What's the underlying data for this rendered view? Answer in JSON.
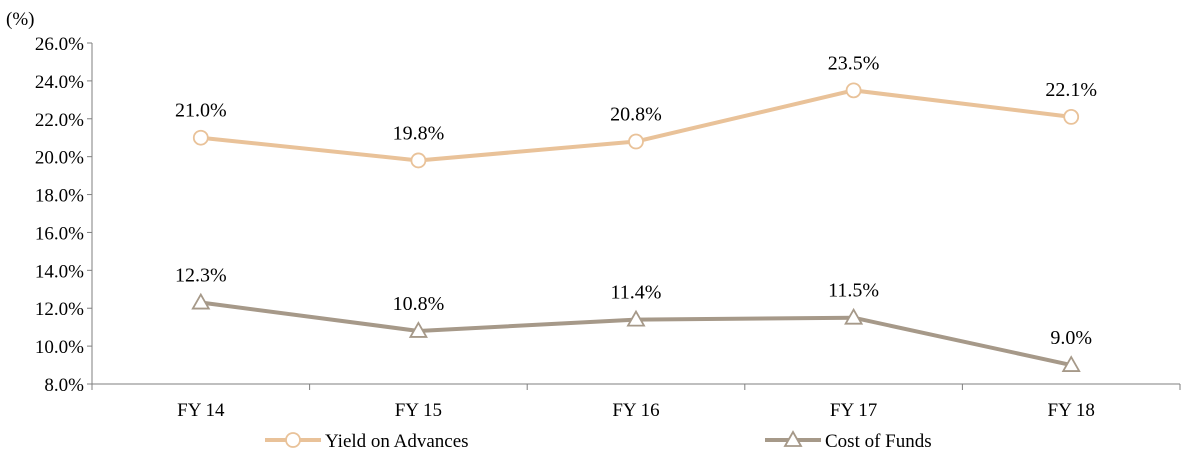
{
  "chart_data": {
    "type": "line",
    "ylabel": "(%)",
    "categories": [
      "FY 14",
      "FY 15",
      "FY 16",
      "FY 17",
      "FY 18"
    ],
    "ylim": [
      8.0,
      26.0
    ],
    "yticks": [
      "8.0%",
      "10.0%",
      "12.0%",
      "14.0%",
      "16.0%",
      "18.0%",
      "20.0%",
      "22.0%",
      "24.0%",
      "26.0%"
    ],
    "legend_position": "bottom",
    "series": [
      {
        "name": "Yield on Advances",
        "values": [
          21.0,
          19.8,
          20.8,
          23.5,
          22.1
        ],
        "labels": [
          "21.0%",
          "19.8%",
          "20.8%",
          "23.5%",
          "22.1%"
        ],
        "color": "#e9c299",
        "marker": "circle"
      },
      {
        "name": "Cost of Funds",
        "values": [
          12.3,
          10.8,
          11.4,
          11.5,
          9.0
        ],
        "labels": [
          "12.3%",
          "10.8%",
          "11.4%",
          "11.5%",
          "9.0%"
        ],
        "color": "#a69989",
        "marker": "triangle"
      }
    ]
  }
}
